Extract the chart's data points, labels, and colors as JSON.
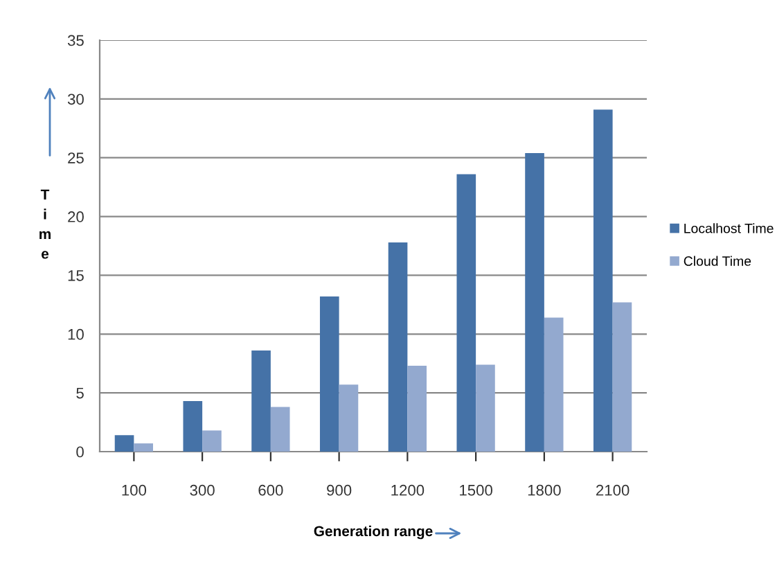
{
  "chart_data": {
    "type": "bar",
    "xlabel": "Generation range",
    "ylabel": "Time",
    "categories": [
      "100",
      "300",
      "600",
      "900",
      "1200",
      "1500",
      "1800",
      "2100"
    ],
    "series": [
      {
        "name": "Localhost Time",
        "color": "#4572a7",
        "values": [
          1.4,
          4.3,
          8.6,
          13.2,
          17.8,
          23.6,
          25.4,
          29.1
        ]
      },
      {
        "name": "Cloud Time",
        "color": "#93a9cf",
        "values": [
          0.7,
          1.8,
          3.8,
          5.7,
          7.3,
          7.4,
          11.4,
          12.7
        ]
      }
    ],
    "ylim": [
      0,
      35
    ],
    "yticks": [
      0,
      5,
      10,
      15,
      20,
      25,
      30,
      35
    ],
    "grid": "y",
    "legend": "right"
  }
}
